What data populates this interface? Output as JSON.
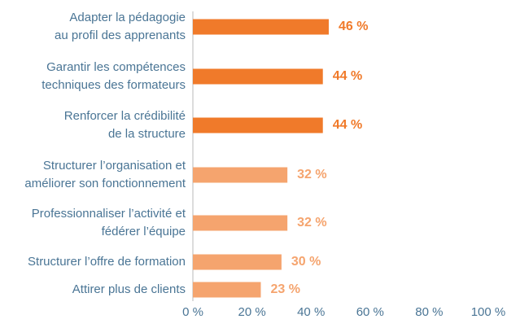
{
  "chart_data": {
    "type": "bar",
    "orientation": "horizontal",
    "categories": [
      [
        "Adapter la pédagogie",
        "au profil des apprenants"
      ],
      [
        "Garantir les compétences",
        "techniques des formateurs"
      ],
      [
        "Renforcer la crédibilité",
        "de la structure"
      ],
      [
        "Structurer l’organisation et",
        "améliorer son fonctionnement"
      ],
      [
        "Professionnaliser l’activité et",
        "fédérer l’équipe"
      ],
      [
        "Structurer l’offre de formation"
      ],
      [
        "Attirer plus de clients"
      ]
    ],
    "values": [
      46,
      44,
      44,
      32,
      32,
      30,
      23
    ],
    "value_labels": [
      "46 %",
      "44 %",
      "44 %",
      "32 %",
      "32 %",
      "30 %",
      "23 %"
    ],
    "colors": [
      "#f07a2a",
      "#f07a2a",
      "#f07a2a",
      "#f5a46e",
      "#f5a46e",
      "#f5a46e",
      "#f5a46e"
    ],
    "xlim": [
      0,
      100
    ],
    "xticks": [
      {
        "value": 0,
        "label": "0 %"
      },
      {
        "value": 20,
        "label": "20 %"
      },
      {
        "value": 40,
        "label": "40 %"
      },
      {
        "value": 60,
        "label": "60 %"
      },
      {
        "value": 80,
        "label": "80 %"
      },
      {
        "value": 100,
        "label": "100 %"
      }
    ],
    "grid": false
  }
}
